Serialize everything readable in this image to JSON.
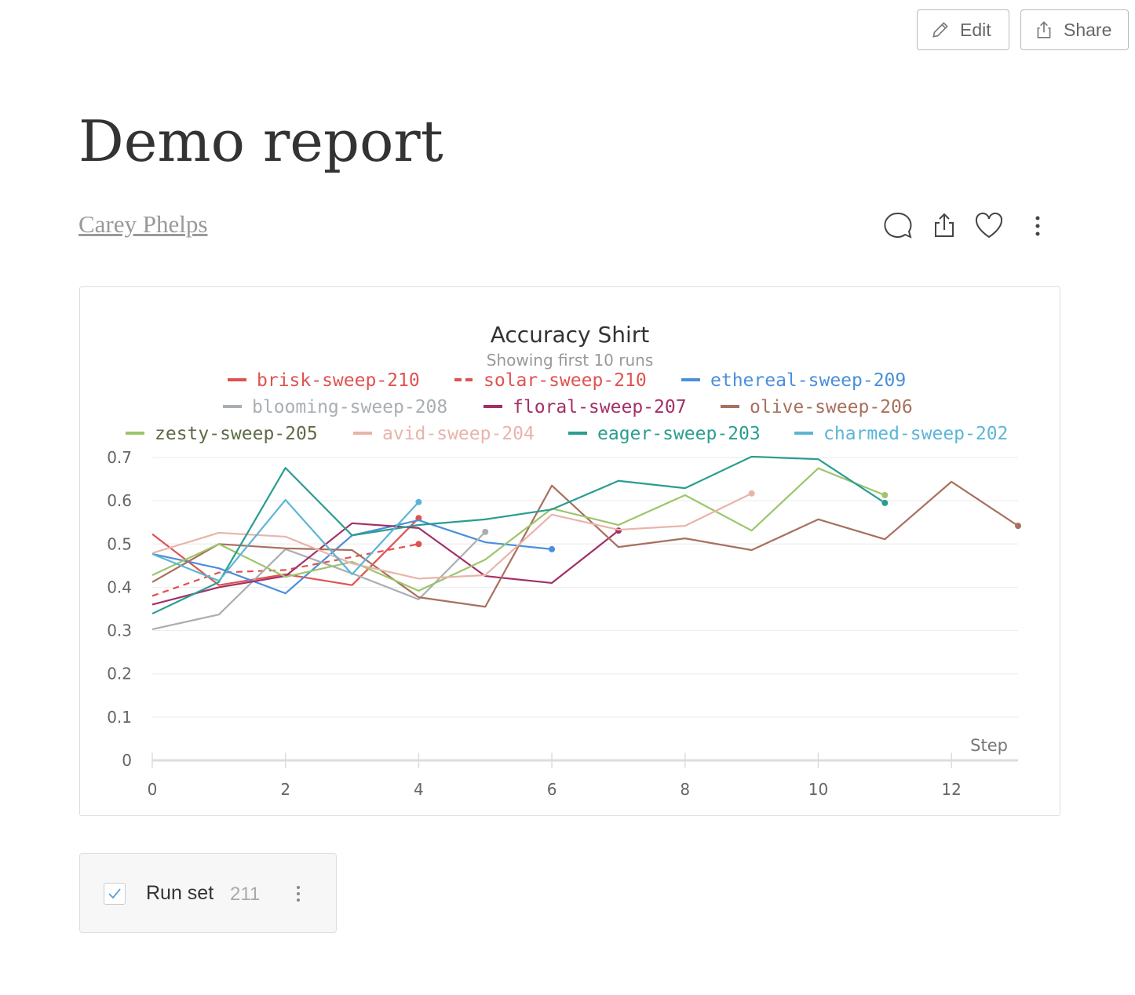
{
  "toolbar": {
    "edit_label": "Edit",
    "share_label": "Share"
  },
  "report": {
    "title": "Demo report",
    "author": "Carey Phelps"
  },
  "actions": {
    "icons": [
      "comment-icon",
      "share-icon",
      "heart-icon",
      "more-vertical-icon"
    ]
  },
  "run_set": {
    "label": "Run set",
    "count": "211",
    "checked": true
  },
  "chart_data": {
    "type": "line",
    "title": "Accuracy Shirt",
    "subtitle": "Showing first 10 runs",
    "xlabel": "Step",
    "ylabel": "",
    "xlim": [
      0,
      13
    ],
    "ylim": [
      0,
      0.7
    ],
    "xticks": [
      "0",
      "2",
      "4",
      "6",
      "8",
      "10",
      "12"
    ],
    "yticks": [
      "0",
      "0.1",
      "0.2",
      "0.3",
      "0.4",
      "0.5",
      "0.6",
      "0.7"
    ],
    "grid": true,
    "legend_position": "top",
    "series": [
      {
        "name": "brisk-sweep-210",
        "color": "#e0524f",
        "dashed": false,
        "values": [
          0.523,
          0.405,
          0.43,
          0.405,
          0.56
        ]
      },
      {
        "name": "solar-sweep-210",
        "color": "#e0524f",
        "dashed": true,
        "values": [
          0.38,
          0.434,
          0.44,
          0.47,
          0.5
        ]
      },
      {
        "name": "ethereal-sweep-209",
        "color": "#4a8fdb",
        "dashed": false,
        "values": [
          0.477,
          0.444,
          0.386,
          0.52,
          0.555,
          0.504,
          0.488
        ]
      },
      {
        "name": "blooming-sweep-208",
        "color": "#a9aeb3",
        "dashed": false,
        "values": [
          0.303,
          0.337,
          0.488,
          0.432,
          0.372,
          0.528
        ]
      },
      {
        "name": "floral-sweep-207",
        "color": "#a32f68",
        "dashed": false,
        "values": [
          0.36,
          0.4,
          0.426,
          0.548,
          0.537,
          0.426,
          0.41,
          0.531
        ]
      },
      {
        "name": "olive-sweep-206",
        "color": "#a8705d",
        "dashed": false,
        "values": [
          0.412,
          0.5,
          0.49,
          0.486,
          0.377,
          0.355,
          0.635,
          0.493,
          0.513,
          0.486,
          0.557,
          0.511,
          0.644,
          0.542
        ]
      },
      {
        "name": "zesty-sweep-205",
        "color": "#9dc56b",
        "dashed": false,
        "values": [
          0.428,
          0.5,
          0.424,
          0.459,
          0.392,
          0.464,
          0.582,
          0.544,
          0.613,
          0.531,
          0.675,
          0.613
        ]
      },
      {
        "name": "avid-sweep-204",
        "color": "#e8b4ab",
        "dashed": false,
        "values": [
          0.479,
          0.526,
          0.517,
          0.455,
          0.42,
          0.428,
          0.568,
          0.533,
          0.542,
          0.617
        ]
      },
      {
        "name": "eager-sweep-203",
        "color": "#2a9d8f",
        "dashed": false,
        "values": [
          0.339,
          0.412,
          0.676,
          0.52,
          0.544,
          0.557,
          0.58,
          0.646,
          0.629,
          0.702,
          0.696,
          0.595
        ]
      },
      {
        "name": "charmed-sweep-202",
        "color": "#5bb6d6",
        "dashed": false,
        "values": [
          0.477,
          0.415,
          0.602,
          0.43,
          0.597
        ]
      }
    ],
    "legend_text_colors": {
      "zesty-sweep-205": "#5e6b45",
      "olive-sweep-206": "#a8705d"
    }
  }
}
